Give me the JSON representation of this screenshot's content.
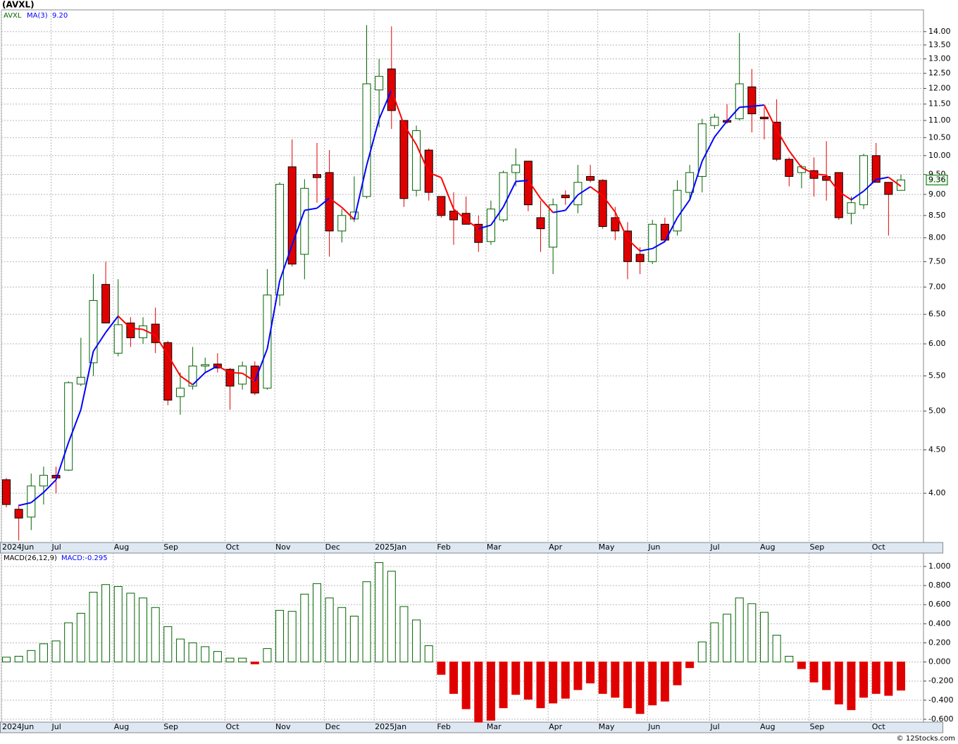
{
  "header": {
    "title": "(AVXL)",
    "symbol": "AVXL",
    "ma_name": "MA(3)",
    "ma_value": "9.20",
    "macd_name": "MACD(26,12,9)",
    "macd_value": "MACD:-0.295",
    "footer": "© 12Stocks.com"
  },
  "chart_data": [
    {
      "type": "candlestick",
      "log_scale": true,
      "grid": true,
      "up_color": "#006400",
      "down_color": "#e00000",
      "ma_up_color": "#0000ff",
      "ma_down_color": "#ff0000",
      "categories": [
        "2024Jun",
        null,
        null,
        null,
        "Jul",
        null,
        null,
        null,
        null,
        "Aug",
        null,
        null,
        null,
        "Sep",
        null,
        null,
        null,
        null,
        "Oct",
        null,
        null,
        null,
        "Nov",
        null,
        null,
        null,
        "Dec",
        null,
        null,
        null,
        "2025Jan",
        null,
        null,
        null,
        null,
        "Feb",
        null,
        null,
        null,
        "Mar",
        null,
        null,
        null,
        null,
        "Apr",
        null,
        null,
        null,
        "May",
        null,
        null,
        null,
        "Jun",
        null,
        null,
        null,
        null,
        "Jul",
        null,
        null,
        null,
        "Aug",
        null,
        null,
        null,
        "Sep",
        null,
        null,
        null,
        null,
        "Oct",
        null,
        null
      ],
      "open": [
        4.15,
        3.83,
        3.75,
        4.08,
        4.2,
        4.26,
        5.38,
        5.7,
        7.05,
        5.85,
        6.35,
        6.1,
        6.33,
        6.02,
        5.2,
        5.35,
        5.65,
        5.68,
        5.6,
        5.38,
        5.65,
        5.32,
        6.85,
        9.7,
        7.65,
        9.5,
        9.55,
        8.15,
        8.42,
        8.95,
        11.95,
        12.65,
        11.0,
        9.1,
        10.15,
        8.95,
        8.6,
        8.55,
        8.3,
        7.92,
        8.4,
        9.55,
        9.85,
        8.45,
        7.8,
        8.98,
        8.75,
        9.45,
        9.35,
        8.45,
        8.15,
        7.65,
        7.5,
        8.3,
        8.15,
        9.05,
        9.45,
        10.85,
        11.0,
        11.05,
        12.05,
        11.1,
        10.95,
        9.9,
        9.55,
        9.6,
        9.45,
        9.55,
        8.55,
        8.75,
        10.0,
        9.3,
        9.1
      ],
      "high": [
        4.17,
        3.88,
        4.22,
        4.3,
        4.3,
        5.42,
        6.1,
        7.25,
        7.5,
        7.15,
        6.45,
        6.45,
        6.62,
        6.05,
        5.55,
        5.95,
        5.78,
        5.85,
        5.62,
        5.72,
        5.72,
        7.35,
        9.3,
        10.45,
        9.38,
        10.35,
        10.15,
        8.65,
        9.45,
        14.25,
        13.0,
        14.2,
        11.0,
        10.85,
        10.2,
        8.95,
        9.05,
        8.95,
        8.5,
        8.85,
        9.6,
        10.2,
        9.85,
        8.85,
        8.9,
        9.1,
        9.75,
        9.75,
        9.38,
        8.7,
        8.35,
        7.8,
        8.4,
        8.45,
        9.35,
        9.75,
        11.05,
        11.2,
        11.5,
        13.95,
        12.65,
        11.4,
        11.65,
        9.95,
        9.75,
        9.95,
        10.4,
        9.55,
        8.95,
        10.05,
        10.35,
        9.3,
        9.5
      ],
      "low": [
        3.85,
        3.52,
        3.62,
        3.88,
        4.0,
        4.25,
        5.35,
        5.5,
        6.35,
        5.8,
        5.95,
        6.0,
        5.85,
        5.08,
        4.95,
        5.3,
        5.55,
        5.55,
        5.02,
        5.3,
        5.22,
        5.3,
        6.65,
        7.4,
        7.15,
        8.8,
        7.6,
        7.9,
        8.35,
        8.9,
        10.8,
        10.75,
        8.7,
        8.95,
        8.85,
        8.45,
        7.85,
        8.3,
        7.7,
        7.85,
        8.35,
        9.2,
        8.6,
        7.7,
        7.25,
        8.75,
        8.55,
        9.3,
        8.2,
        7.95,
        7.15,
        7.25,
        7.45,
        7.9,
        8.05,
        8.85,
        9.05,
        10.75,
        10.9,
        11.0,
        10.65,
        10.45,
        9.85,
        9.2,
        9.15,
        8.95,
        8.85,
        8.4,
        8.3,
        8.65,
        9.3,
        8.05,
        9.1
      ],
      "close": [
        3.88,
        3.74,
        4.08,
        4.2,
        4.17,
        5.4,
        5.48,
        6.75,
        6.35,
        6.32,
        6.1,
        6.3,
        6.02,
        5.15,
        5.32,
        5.65,
        5.67,
        5.62,
        5.35,
        5.65,
        5.25,
        6.85,
        9.25,
        7.45,
        9.15,
        9.42,
        8.15,
        8.5,
        8.58,
        12.15,
        12.4,
        11.3,
        8.9,
        10.7,
        9.05,
        8.5,
        8.4,
        8.3,
        7.9,
        8.65,
        9.55,
        9.75,
        8.75,
        8.2,
        8.75,
        8.92,
        9.3,
        9.35,
        8.25,
        8.15,
        7.5,
        7.5,
        8.3,
        7.95,
        9.1,
        9.55,
        10.9,
        11.1,
        10.95,
        12.15,
        11.2,
        11.05,
        9.9,
        9.45,
        9.7,
        9.4,
        9.35,
        8.45,
        8.8,
        10.0,
        9.3,
        9.0,
        9.36
      ],
      "ma": [
        null,
        3.87,
        3.9,
        4.01,
        4.15,
        4.59,
        5.02,
        5.88,
        6.19,
        6.47,
        6.26,
        6.24,
        6.14,
        5.82,
        5.5,
        5.37,
        5.55,
        5.65,
        5.55,
        5.54,
        5.42,
        5.92,
        7.12,
        7.85,
        8.62,
        8.67,
        8.91,
        8.69,
        8.41,
        9.74,
        11.04,
        11.95,
        10.87,
        10.3,
        9.55,
        9.42,
        8.65,
        8.4,
        8.2,
        8.28,
        8.7,
        9.32,
        9.35,
        8.9,
        8.57,
        8.62,
        8.99,
        9.19,
        8.97,
        8.58,
        7.97,
        7.72,
        7.77,
        7.92,
        8.45,
        8.87,
        9.85,
        10.52,
        10.98,
        11.4,
        11.43,
        11.47,
        10.72,
        10.13,
        9.68,
        9.52,
        9.48,
        9.07,
        8.87,
        9.08,
        9.37,
        9.43,
        9.2
      ],
      "ylim": [
        3.5,
        14.85
      ],
      "yticks": [
        {
          "value": 4,
          "label": "4.00"
        },
        {
          "value": 4.5,
          "label": "4.50"
        },
        {
          "value": 5,
          "label": "5.00"
        },
        {
          "value": 5.5,
          "label": "5.50"
        },
        {
          "value": 6,
          "label": "6.00"
        },
        {
          "value": 6.5,
          "label": "6.50"
        },
        {
          "value": 7,
          "label": "7.00"
        },
        {
          "value": 7.5,
          "label": "7.50"
        },
        {
          "value": 8,
          "label": "8.00"
        },
        {
          "value": 8.5,
          "label": "8.50"
        },
        {
          "value": 9,
          "label": "9.00"
        },
        {
          "value": 9.5,
          "label": "9.50"
        },
        {
          "value": 10,
          "label": "10.00"
        },
        {
          "value": 10.5,
          "label": "10.50"
        },
        {
          "value": 11,
          "label": "11.00"
        },
        {
          "value": 11.5,
          "label": "11.50"
        },
        {
          "value": 12,
          "label": "12.00"
        },
        {
          "value": 12.5,
          "label": "12.50"
        },
        {
          "value": 13,
          "label": "13.00"
        },
        {
          "value": 13.5,
          "label": "13.50"
        },
        {
          "value": 14,
          "label": "14.00"
        }
      ]
    },
    {
      "type": "bar",
      "grid": true,
      "pos_color": "#006400",
      "neg_color": "#e00000",
      "values": [
        0.05,
        0.06,
        0.12,
        0.19,
        0.22,
        0.41,
        0.51,
        0.73,
        0.81,
        0.79,
        0.72,
        0.67,
        0.57,
        0.37,
        0.24,
        0.2,
        0.16,
        0.11,
        0.04,
        0.04,
        -0.02,
        0.14,
        0.54,
        0.53,
        0.71,
        0.82,
        0.67,
        0.57,
        0.48,
        0.84,
        1.04,
        0.95,
        0.58,
        0.44,
        0.17,
        -0.13,
        -0.33,
        -0.49,
        -0.63,
        -0.61,
        -0.48,
        -0.34,
        -0.39,
        -0.48,
        -0.43,
        -0.38,
        -0.29,
        -0.22,
        -0.33,
        -0.37,
        -0.48,
        -0.54,
        -0.45,
        -0.41,
        -0.24,
        -0.06,
        0.21,
        0.41,
        0.5,
        0.67,
        0.61,
        0.52,
        0.28,
        0.06,
        -0.07,
        -0.21,
        -0.29,
        -0.44,
        -0.5,
        -0.37,
        -0.33,
        -0.35,
        -0.295
      ],
      "ylim": [
        -0.63,
        1.14
      ],
      "yticks": [
        {
          "value": -0.6,
          "label": "-0.600"
        },
        {
          "value": -0.4,
          "label": "-0.400"
        },
        {
          "value": -0.2,
          "label": "-0.200"
        },
        {
          "value": 0,
          "label": "0.000"
        },
        {
          "value": 0.2,
          "label": "0.200"
        },
        {
          "value": 0.4,
          "label": "0.400"
        },
        {
          "value": 0.6,
          "label": "0.600"
        },
        {
          "value": 0.8,
          "label": "0.800"
        },
        {
          "value": 1,
          "label": "1.000"
        }
      ]
    }
  ]
}
